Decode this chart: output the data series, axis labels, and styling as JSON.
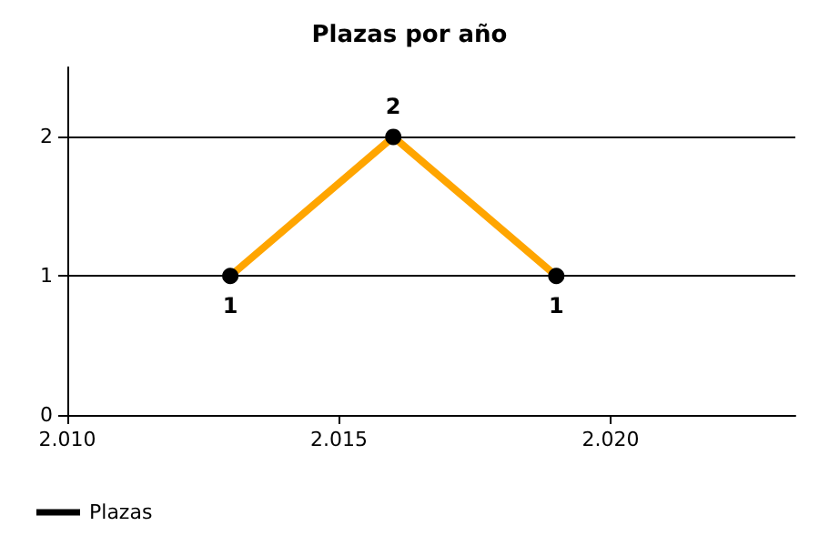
{
  "chart_data": {
    "type": "line",
    "title": "Plazas por año",
    "x": [
      2013,
      2016,
      2019
    ],
    "series": [
      {
        "name": "Plazas",
        "color": "#ffa500",
        "values": [
          1,
          2,
          1
        ]
      }
    ],
    "xlim": [
      2010,
      2023.4
    ],
    "xticks": [
      {
        "value": 2010,
        "label": "2.010"
      },
      {
        "value": 2015,
        "label": "2.015"
      },
      {
        "value": 2020,
        "label": "2.020"
      }
    ],
    "ylim": [
      0,
      2.5
    ],
    "yticks": [
      0,
      1,
      2
    ],
    "grid": "y",
    "legend": "bottom left",
    "marker": "circle",
    "data_labels": true
  }
}
